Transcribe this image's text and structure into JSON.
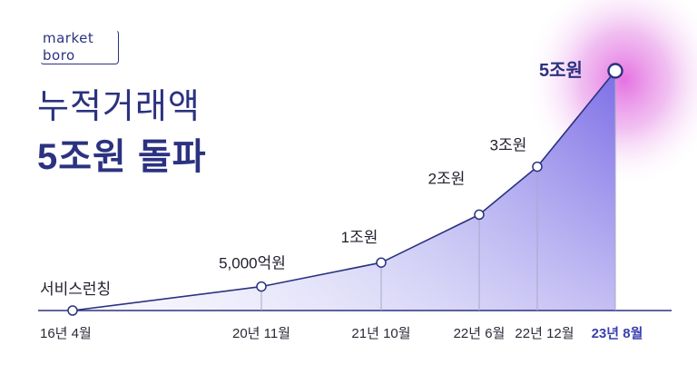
{
  "logo": {
    "line1": "market",
    "line2": "boro"
  },
  "headline": {
    "line1": "누적거래액",
    "line2": "5조원 돌파"
  },
  "colors": {
    "navy": "#2b3280",
    "fill_light": "#dcdcf8",
    "fill_dark": "#6e6ae0",
    "glow": "#e070e0"
  },
  "chart_data": {
    "type": "area",
    "title": "",
    "xlabel": "",
    "ylabel": "",
    "x": [
      "16년 4월",
      "20년 11월",
      "21년 10월",
      "22년 6월",
      "22년 12월",
      "23년 8월"
    ],
    "values_krw_trillion": [
      0,
      0.5,
      1,
      2,
      3,
      5
    ],
    "data_labels": [
      "서비스런칭",
      "5,000억원",
      "1조원",
      "2조원",
      "3조원",
      "5조원"
    ],
    "highlight_index": 5,
    "grid": false,
    "legend": "none"
  }
}
